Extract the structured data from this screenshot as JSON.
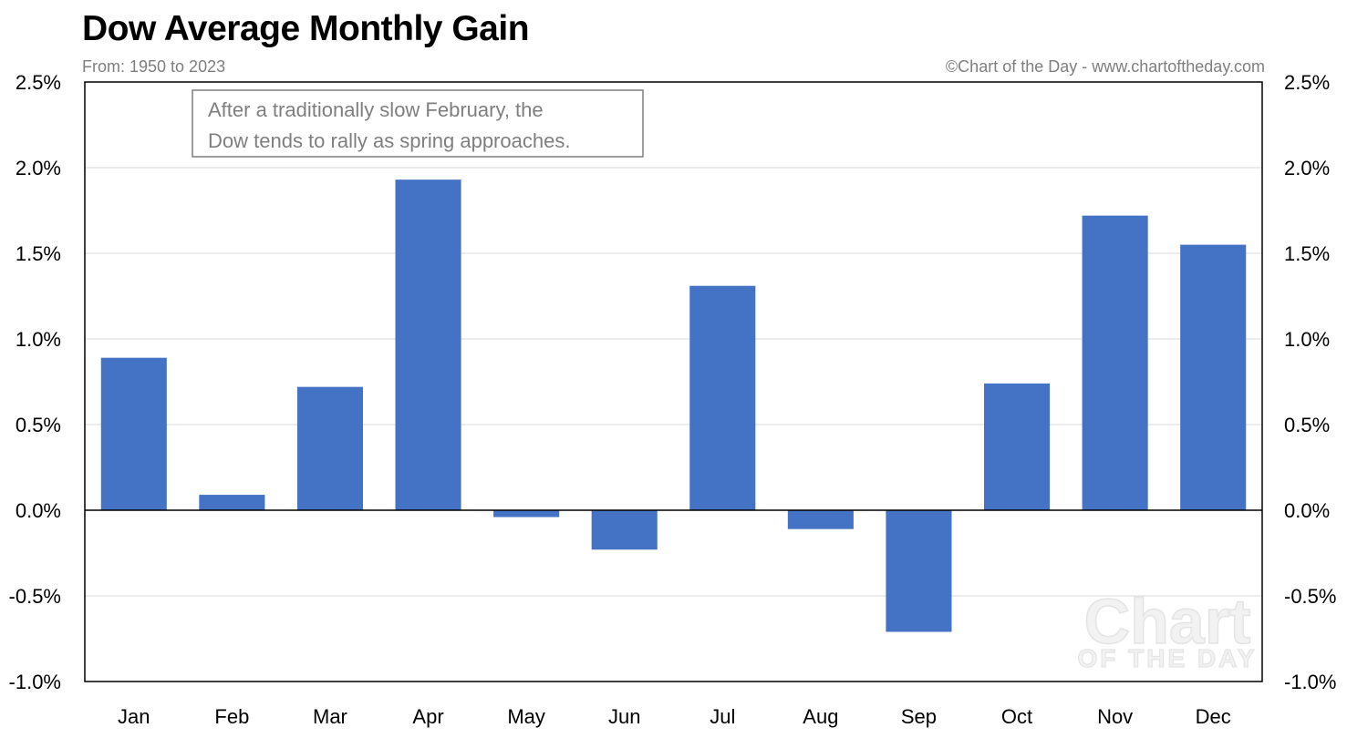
{
  "header": {
    "title": "Dow Average Monthly Gain",
    "subtitle": "From: 1950 to 2023",
    "credit": "©Chart of the Day - www.chartoftheday.com"
  },
  "annotation": {
    "line1": "After a traditionally slow February, the",
    "line2": "Dow tends to rally as spring approaches."
  },
  "watermark": {
    "line1": "Chart",
    "line2": "OF THE DAY"
  },
  "colors": {
    "bar": "#4472c4",
    "grid": "#d9d9d9",
    "axis": "#000000",
    "text_muted": "#7f7f7f"
  },
  "chart_data": {
    "type": "bar",
    "title": "Dow Average Monthly Gain",
    "subtitle": "From: 1950 to 2023",
    "categories": [
      "Jan",
      "Feb",
      "Mar",
      "Apr",
      "May",
      "Jun",
      "Jul",
      "Aug",
      "Sep",
      "Oct",
      "Nov",
      "Dec"
    ],
    "values": [
      0.89,
      0.09,
      0.72,
      1.93,
      -0.04,
      -0.23,
      1.31,
      -0.11,
      -0.71,
      0.74,
      1.72,
      1.55
    ],
    "value_unit": "%",
    "ylim": [
      -1.0,
      2.5
    ],
    "yticks": [
      2.5,
      2.0,
      1.5,
      1.0,
      0.5,
      0.0,
      -0.5,
      -1.0
    ],
    "ytick_labels": [
      "2.5%",
      "2.0%",
      "1.5%",
      "1.0%",
      "0.5%",
      "0.0%",
      "-0.5%",
      "-1.0%"
    ],
    "secondary_y_axis": true,
    "grid": true,
    "legend": "none"
  }
}
